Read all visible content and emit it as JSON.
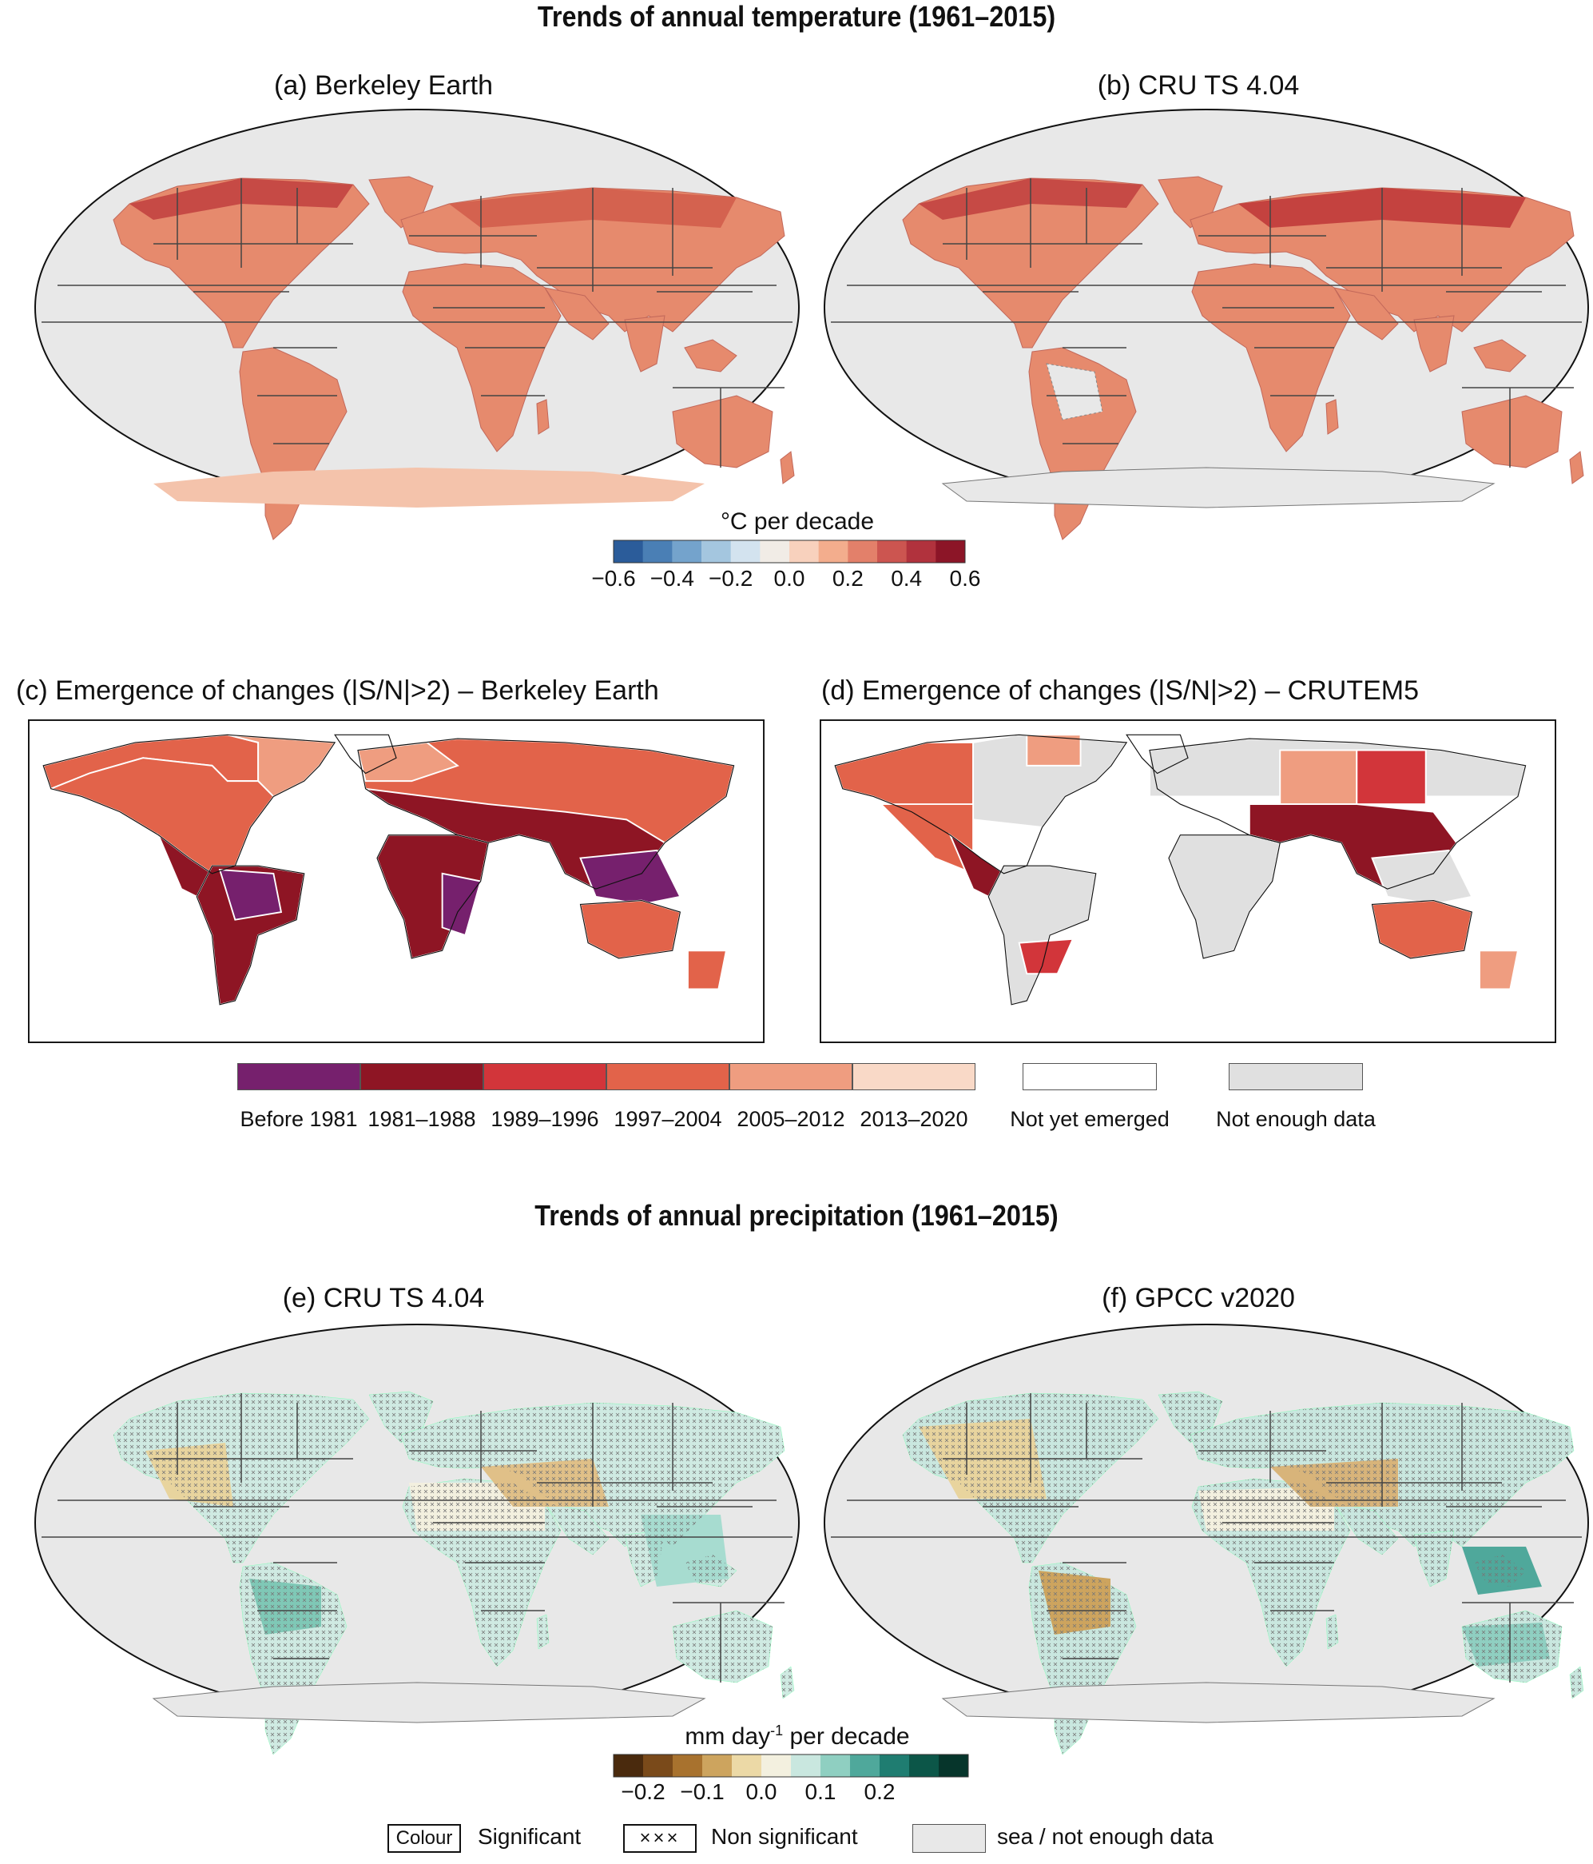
{
  "temperature": {
    "heading": "Trends of annual temperature (1961–2015)",
    "panel_a": "(a) Berkeley Earth",
    "panel_b": "(b) CRU TS 4.04",
    "colorbar": {
      "title": "°C per decade",
      "ticks": [
        "−0.6",
        "−0.4",
        "−0.2",
        "0.0",
        "0.2",
        "0.4",
        "0.6"
      ],
      "colors": [
        "#2b5c9a",
        "#4a7fb5",
        "#74a3cc",
        "#a4c6df",
        "#d3e3ef",
        "#f1ece6",
        "#f8d1bd",
        "#f3ad8d",
        "#e3806a",
        "#cc5550",
        "#b1323d",
        "#8c1527"
      ]
    },
    "trend_colors": {
      "land": "#e58b6e",
      "land_strong": "#cd5a51",
      "land_weak": "#f1b396",
      "antarctica": "#f4c3ab"
    }
  },
  "emergence": {
    "panel_c": "(c) Emergence of changes (|S/N|>2) – Berkeley Earth",
    "panel_d": "(d) Emergence of changes (|S/N|>2) – CRUTEM5",
    "categories": [
      {
        "label": "Before 1981",
        "color": "#76206d"
      },
      {
        "label": "1981–1988",
        "color": "#8e1524"
      },
      {
        "label": "1989–1996",
        "color": "#d2353a"
      },
      {
        "label": "1997–2004",
        "color": "#e2634a"
      },
      {
        "label": "2005–2012",
        "color": "#ef9d80"
      },
      {
        "label": "2013–2020",
        "color": "#f9d9c7"
      }
    ],
    "not_yet": {
      "label": "Not yet emerged",
      "color": "#ffffff"
    },
    "not_enough": {
      "label": "Not enough data",
      "color": "#e0e0e0"
    }
  },
  "precipitation": {
    "heading": "Trends of annual precipitation (1961–2015)",
    "panel_e": "(e) CRU TS 4.04",
    "panel_f": "(f) GPCC v2020",
    "colorbar": {
      "title": "mm day",
      "title_sup": "-1",
      "title_suffix": " per decade",
      "ticks": [
        "−0.2",
        "−0.1",
        "0.0",
        "0.1",
        "0.2"
      ],
      "colors": [
        "#4a2a0d",
        "#7a4a1a",
        "#a8722e",
        "#cda45e",
        "#ecd9a6",
        "#f3f0df",
        "#c9e7df",
        "#8fcfc1",
        "#4fa89b",
        "#1f7d71",
        "#0c5648",
        "#06352b"
      ]
    }
  },
  "legend": {
    "colour_box": "Colour",
    "significant": "Significant",
    "cross_box": "×××",
    "non_significant": "Non significant",
    "sea": "sea / not enough data"
  }
}
